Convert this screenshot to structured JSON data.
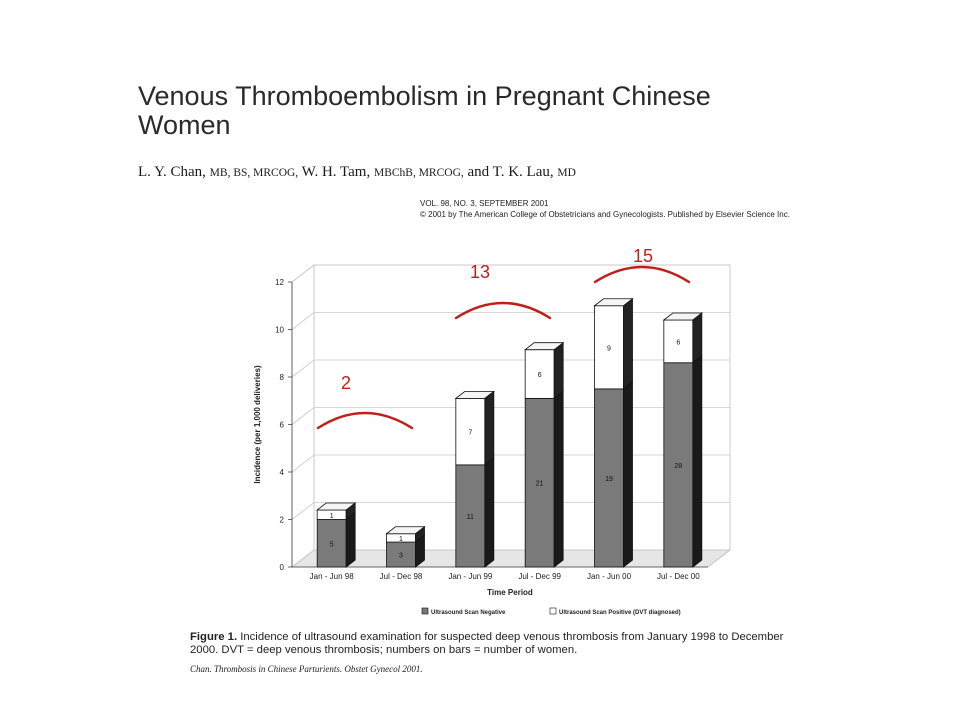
{
  "paper": {
    "title": "Venous Thromboembolism in Pregnant Chinese Women",
    "authors": [
      {
        "name": "L. Y. Chan,",
        "degrees": "MB, BS, MRCOG,"
      },
      {
        "name": "W. H. Tam,",
        "degrees": "MBChB, MRCOG,"
      },
      {
        "name": "and T. K. Lau,",
        "degrees": "MD"
      }
    ],
    "journal_line1": "VOL. 98, NO. 3, SEPTEMBER 2001",
    "journal_line2": "© 2001 by The American College of Obstetricians and Gynecologists. Published by Elsevier Science Inc."
  },
  "figure": {
    "label": "Figure 1.",
    "caption": "Incidence of ultrasound examination for suspected deep venous thrombosis from January 1998 to December 2000. DVT = deep venous thrombosis; numbers on bars = number of women.",
    "citation": "Chan. Thrombosis in Chinese Parturients. Obstet Gynecol 2001."
  },
  "chart_data": {
    "type": "bar",
    "stacked": true,
    "three_d": true,
    "xlabel": "Time Period",
    "ylabel": "Incidence (per 1,000 deliveries)",
    "ylim": [
      0,
      12
    ],
    "yticks": [
      "0",
      "2",
      "4",
      "6",
      "8",
      "10",
      "12"
    ],
    "categories": [
      "Jan - Jun 98",
      "Jul - Dec 98",
      "Jan - Jun 99",
      "Jul - Dec 99",
      "Jan - Jun 00",
      "Jul - Dec 00"
    ],
    "series": [
      {
        "name": "Ultrasound Scan Negative",
        "values": [
          2.0,
          1.05,
          4.3,
          7.1,
          7.5,
          8.6
        ],
        "labels": [
          "5",
          "3",
          "11",
          "21",
          "19",
          "28"
        ],
        "color": "#7a7a7a"
      },
      {
        "name": "Ultrasound Scan Positive (DVT diagnosed)",
        "values": [
          0.4,
          0.35,
          2.8,
          2.05,
          3.5,
          1.8
        ],
        "labels": [
          "1",
          "1",
          "7",
          "6",
          "9",
          "6"
        ],
        "color": "#ffffff"
      }
    ],
    "legend_position": "bottom",
    "grid": true,
    "annotations": [
      {
        "text": "2",
        "group": [
          0,
          1
        ]
      },
      {
        "text": "13",
        "group": [
          2,
          3
        ]
      },
      {
        "text": "15",
        "group": [
          4,
          5
        ]
      }
    ],
    "annotation_color": "#c0201a"
  }
}
